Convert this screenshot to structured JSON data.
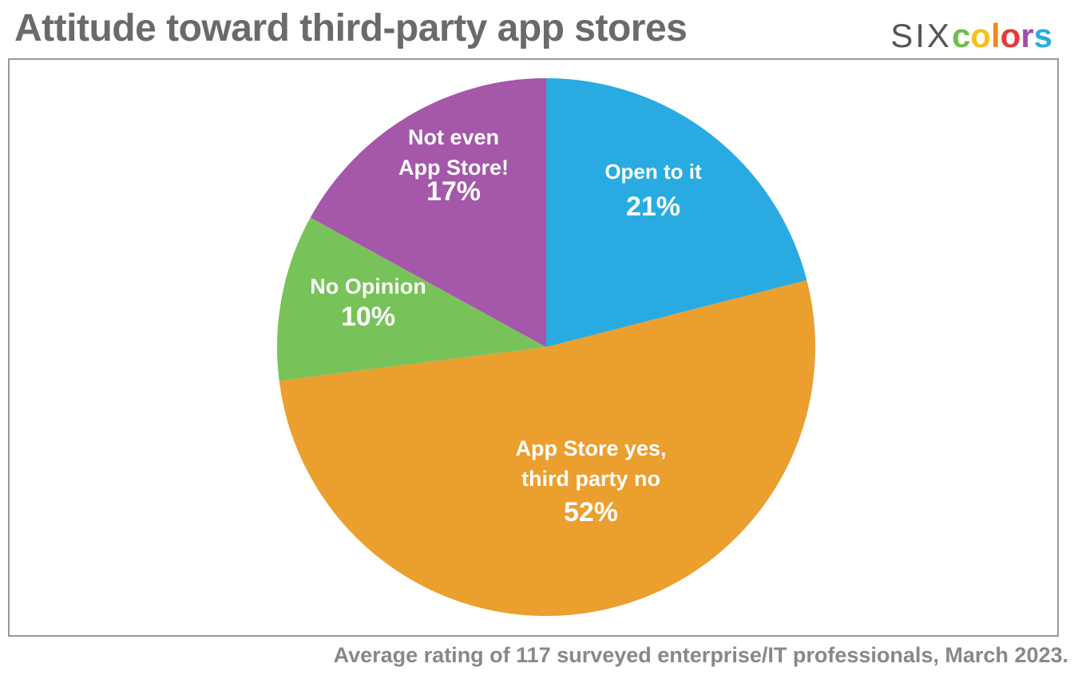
{
  "header": {
    "title": "Attitude toward third-party app stores",
    "logo": {
      "prefix": "SIX",
      "letters": [
        {
          "char": "c",
          "color": "#6cbf4a"
        },
        {
          "char": "o",
          "color": "#f5c11b"
        },
        {
          "char": "l",
          "color": "#f08a24"
        },
        {
          "char": "o",
          "color": "#e23b3b"
        },
        {
          "char": "r",
          "color": "#9b4fa8"
        },
        {
          "char": "s",
          "color": "#29abe2"
        }
      ]
    }
  },
  "chart_data": {
    "type": "pie",
    "title": "Attitude toward third-party app stores",
    "start_angle_deg": 0,
    "direction": "clockwise",
    "slices": [
      {
        "label_lines": [
          "Open to it"
        ],
        "value": 21,
        "value_label": "21%",
        "color": "#29abe2"
      },
      {
        "label_lines": [
          "App Store yes,",
          "third party no"
        ],
        "value": 52,
        "value_label": "52%",
        "color": "#eb9f2f"
      },
      {
        "label_lines": [
          "No Opinion"
        ],
        "value": 10,
        "value_label": "10%",
        "color": "#78c25a"
      },
      {
        "label_lines": [
          "Not even",
          "App Store!"
        ],
        "value": 17,
        "value_label": "17%",
        "color": "#a557a9"
      }
    ]
  },
  "footer": {
    "caption": "Average rating of 117 surveyed enterprise/IT professionals, March 2023."
  }
}
